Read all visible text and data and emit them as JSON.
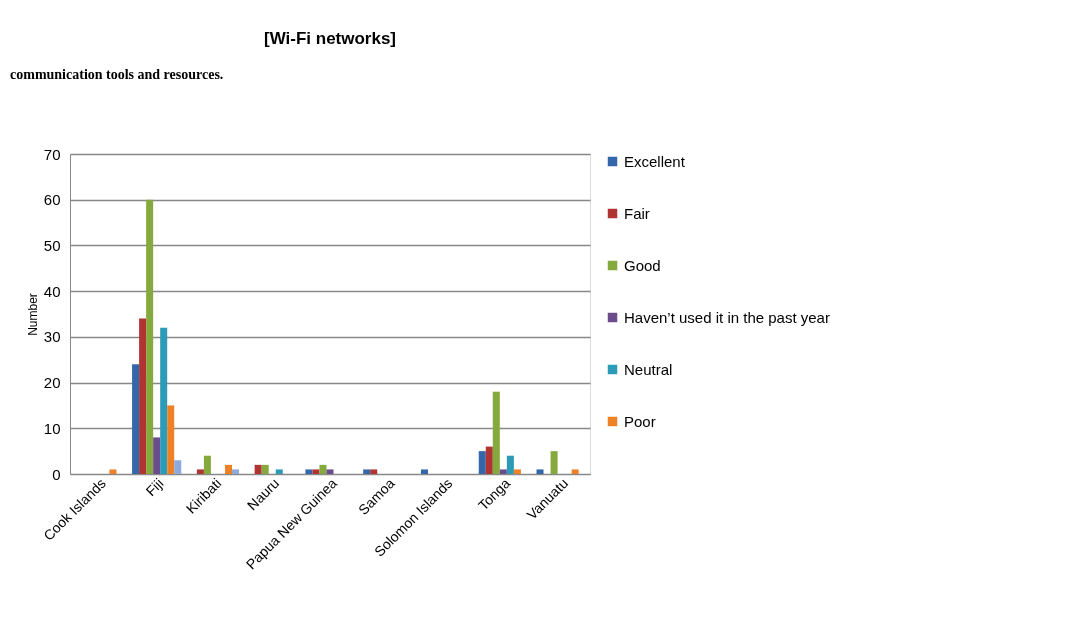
{
  "chart_data": {
    "type": "bar",
    "title": "[Wi-Fi networks]",
    "ylabel": "Number",
    "annotations": [
      "communication tools and resources."
    ],
    "categories": [
      "Cook Islands",
      "Fiji",
      "Kiribati",
      "Nauru",
      "Papua New Guinea",
      "Samoa",
      "Solomon Islands",
      "Tonga",
      "Vanuatu"
    ],
    "series": [
      {
        "name": "Excellent",
        "color": "#3366aa",
        "values": [
          0,
          24,
          0,
          0,
          1,
          1,
          1,
          5,
          1
        ]
      },
      {
        "name": "Fair",
        "color": "#b03432",
        "values": [
          0,
          34,
          1,
          2,
          1,
          1,
          0,
          6,
          0
        ]
      },
      {
        "name": "Good",
        "color": "#86a93e",
        "values": [
          0,
          60,
          4,
          2,
          2,
          0,
          0,
          18,
          5
        ]
      },
      {
        "name": "Haven’t used it in the past year",
        "color": "#6a4c8c",
        "values": [
          0,
          8,
          0,
          0,
          1,
          0,
          0,
          1,
          0
        ]
      },
      {
        "name": "Neutral",
        "color": "#2b9bb8",
        "values": [
          0,
          32,
          0,
          1,
          0,
          0,
          0,
          4,
          0
        ]
      },
      {
        "name": "Poor",
        "color": "#ee8125",
        "values": [
          1,
          15,
          2,
          0,
          0,
          0,
          0,
          1,
          1
        ]
      },
      {
        "color": "#8eaadb",
        "values": [
          0,
          3,
          1,
          0,
          0,
          0,
          0,
          0,
          0
        ]
      }
    ],
    "ylim": [
      0,
      70
    ],
    "yticks": [
      0,
      10,
      20,
      30,
      40,
      50,
      60,
      70
    ],
    "grid": "y",
    "legend": "right"
  }
}
